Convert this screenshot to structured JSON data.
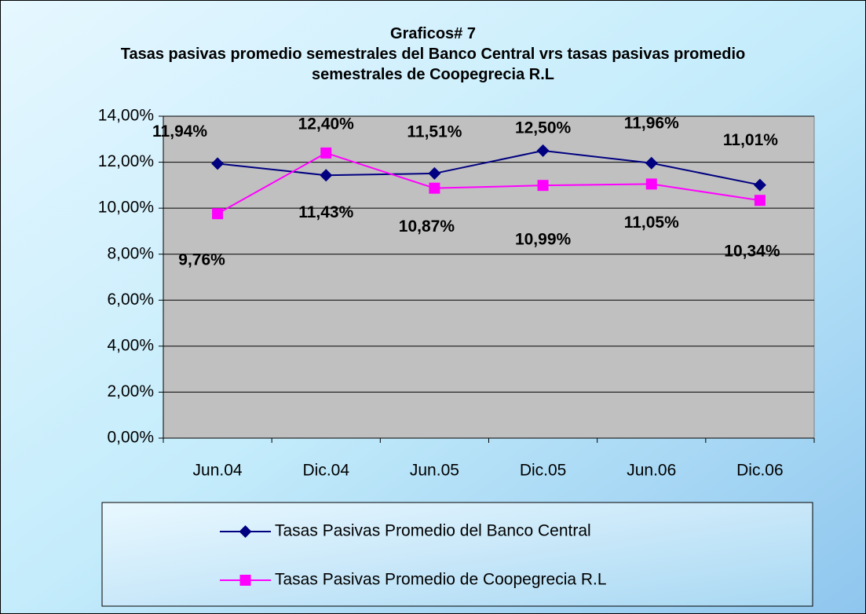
{
  "chart_data": {
    "type": "line",
    "title": "Graficos# 7",
    "subtitle": "Tasas pasivas promedio semestrales del Banco Central vrs tasas pasivas promedio semestrales de Coopegrecia R.L",
    "categories": [
      "Jun.04",
      "Dic.04",
      "Jun.05",
      "Dic.05",
      "Jun.06",
      "Dic.06"
    ],
    "series": [
      {
        "name": "Tasas Pasivas Promedio del Banco Central",
        "color": "#000080",
        "marker": "diamond",
        "values": [
          11.94,
          11.43,
          11.51,
          12.5,
          11.96,
          11.01
        ],
        "value_labels": [
          "11,94%",
          "11,43%",
          "11,51%",
          "12,50%",
          "11,96%",
          "11,01%"
        ]
      },
      {
        "name": "Tasas Pasivas Promedio de Coopegrecia R.L",
        "color": "#ff00ff",
        "marker": "square",
        "values": [
          9.76,
          12.4,
          10.87,
          10.99,
          11.05,
          10.34
        ],
        "value_labels": [
          "9,76%",
          "12,40%",
          "10,87%",
          "10,99%",
          "11,05%",
          "10,34%"
        ]
      }
    ],
    "ylim": [
      0,
      14
    ],
    "yticks": [
      {
        "value": 0,
        "label": "0,00%"
      },
      {
        "value": 2,
        "label": "2,00%"
      },
      {
        "value": 4,
        "label": "4,00%"
      },
      {
        "value": 6,
        "label": "6,00%"
      },
      {
        "value": 8,
        "label": "8,00%"
      },
      {
        "value": 10,
        "label": "10,00%"
      },
      {
        "value": 12,
        "label": "12,00%"
      },
      {
        "value": 14,
        "label": "14,00%"
      }
    ],
    "grid": true,
    "legend": "bottom"
  }
}
